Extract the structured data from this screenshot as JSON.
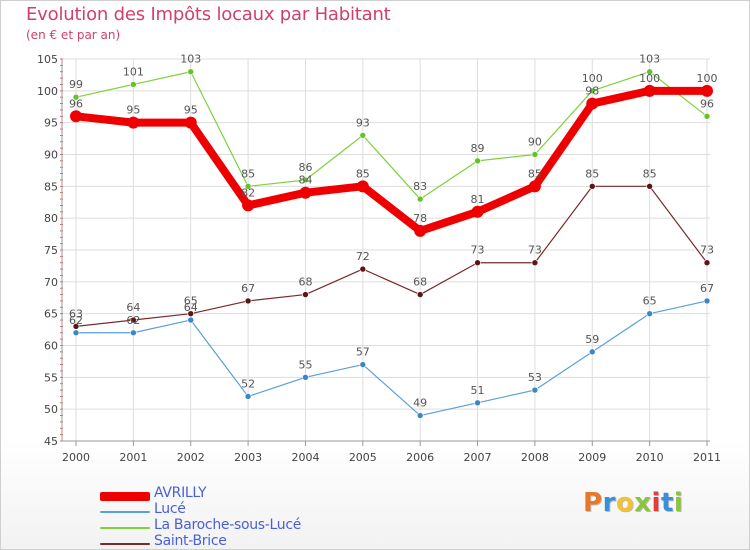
{
  "chart_data": {
    "type": "line",
    "title": "Evolution des Impôts locaux par Habitant",
    "subtitle": "(en € et par an)",
    "x": [
      "2000",
      "2001",
      "2002",
      "2003",
      "2004",
      "2005",
      "2006",
      "2007",
      "2008",
      "2009",
      "2010",
      "2011"
    ],
    "ylim": [
      45,
      105
    ],
    "yticks": [
      45,
      50,
      55,
      60,
      65,
      70,
      75,
      80,
      85,
      90,
      95,
      100,
      105
    ],
    "grid": true,
    "series": [
      {
        "name": "La Baroche-sous-Lucé",
        "color": "#7fd13b",
        "dot": "#66c22a",
        "width": 1.2,
        "values": [
          99,
          101,
          103,
          85,
          86,
          93,
          83,
          89,
          90,
          100,
          103,
          96
        ]
      },
      {
        "name": "Saint-Brice",
        "color": "#7a2a2a",
        "dot": "#5a1515",
        "width": 1.2,
        "values": [
          63,
          64,
          65,
          67,
          68,
          72,
          68,
          73,
          73,
          85,
          85,
          73
        ]
      },
      {
        "name": "Lucé",
        "color": "#5aa0d8",
        "dot": "#3d86c6",
        "width": 1.2,
        "values": [
          62,
          62,
          64,
          52,
          55,
          57,
          49,
          51,
          53,
          59,
          65,
          67
        ]
      },
      {
        "name": "AVRILLY",
        "color": "#ee0000",
        "dot": "#ee0000",
        "width": 8,
        "values": [
          96,
          95,
          95,
          82,
          84,
          85,
          78,
          81,
          85,
          98,
          100,
          100
        ]
      }
    ],
    "legend_order": [
      "AVRILLY",
      "Lucé",
      "La Baroche-sous-Lucé",
      "Saint-Brice"
    ],
    "legend_position": "bottom-left"
  },
  "logo": {
    "text": "Proxiti",
    "colors": [
      "#e8762b",
      "#3a8fd6",
      "#f2c230",
      "#8bc43f",
      "#e23c3c",
      "#3a8fd6",
      "#8bc43f"
    ]
  }
}
